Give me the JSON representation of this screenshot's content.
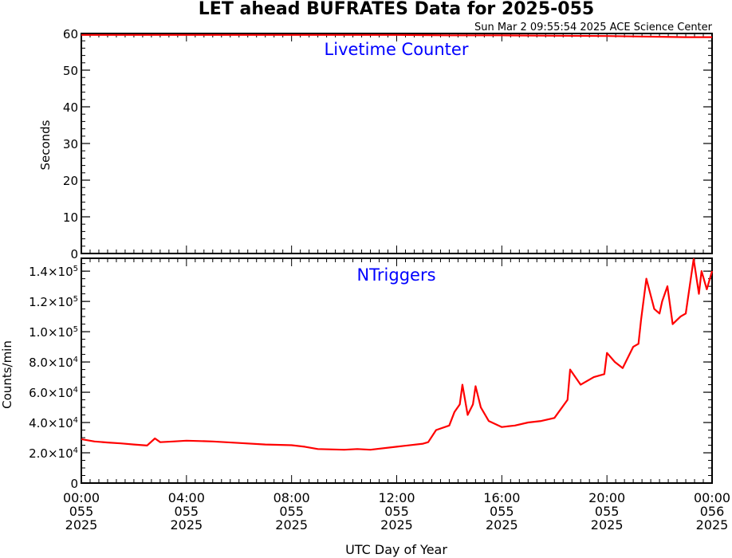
{
  "title": "LET ahead BUFRATES Data for 2025-055",
  "timestamp": "Sun Mar  2 09:55:54 2025 ACE Science Center",
  "xlabel": "UTC Day of Year",
  "x_ticks": [
    {
      "l1": "00:00",
      "l2": "055",
      "l3": "2025"
    },
    {
      "l1": "04:00",
      "l2": "055",
      "l3": "2025"
    },
    {
      "l1": "08:00",
      "l2": "055",
      "l3": "2025"
    },
    {
      "l1": "12:00",
      "l2": "055",
      "l3": "2025"
    },
    {
      "l1": "16:00",
      "l2": "055",
      "l3": "2025"
    },
    {
      "l1": "20:00",
      "l2": "055",
      "l3": "2025"
    },
    {
      "l1": "00:00",
      "l2": "056",
      "l3": "2025"
    }
  ],
  "colors": {
    "series": "#ff0000",
    "panel_label": "#0000ff",
    "axis": "#000000"
  },
  "chart_data": [
    {
      "type": "line",
      "panel_label": "Livetime Counter",
      "ylabel": "Seconds",
      "xlim_hours": [
        0,
        24
      ],
      "ylim": [
        0,
        60
      ],
      "yticks": [
        {
          "v": 0,
          "label": "0"
        },
        {
          "v": 10,
          "label": "10"
        },
        {
          "v": 20,
          "label": "20"
        },
        {
          "v": 30,
          "label": "30"
        },
        {
          "v": 40,
          "label": "40"
        },
        {
          "v": 50,
          "label": "50"
        },
        {
          "v": 60,
          "label": "60"
        }
      ],
      "series": [
        {
          "x": [
            0,
            2,
            4,
            6,
            8,
            10,
            12,
            14,
            16,
            18,
            20,
            21,
            22,
            23,
            24
          ],
          "y": [
            59.6,
            59.6,
            59.6,
            59.6,
            59.6,
            59.6,
            59.6,
            59.5,
            59.5,
            59.4,
            59.3,
            59.2,
            59.1,
            59.0,
            59.0
          ]
        }
      ]
    },
    {
      "type": "line",
      "panel_label": "NTriggers",
      "ylabel": "Counts/min",
      "xlim_hours": [
        0,
        24
      ],
      "ylim": [
        0,
        150000
      ],
      "yticks": [
        {
          "v": 0,
          "m": "0",
          "e": ""
        },
        {
          "v": 20000,
          "m": "2.0×10",
          "e": "4"
        },
        {
          "v": 40000,
          "m": "4.0×10",
          "e": "4"
        },
        {
          "v": 60000,
          "m": "6.0×10",
          "e": "4"
        },
        {
          "v": 80000,
          "m": "8.0×10",
          "e": "4"
        },
        {
          "v": 100000,
          "m": "1.0×10",
          "e": "5"
        },
        {
          "v": 120000,
          "m": "1.2×10",
          "e": "5"
        },
        {
          "v": 140000,
          "m": "1.4×10",
          "e": "5"
        }
      ],
      "series": [
        {
          "x": [
            0,
            0.5,
            1,
            1.5,
            2,
            2.5,
            2.8,
            3,
            3.5,
            4,
            5,
            6,
            7,
            8,
            8.5,
            9,
            10,
            10.5,
            11,
            12,
            13,
            13.2,
            13.5,
            14,
            14.2,
            14.4,
            14.5,
            14.7,
            14.9,
            15.0,
            15.2,
            15.5,
            16,
            16.5,
            17,
            17.5,
            18,
            18.5,
            18.6,
            19,
            19.5,
            19.9,
            20,
            20.3,
            20.6,
            21,
            21.2,
            21.3,
            21.5,
            21.8,
            22,
            22.1,
            22.3,
            22.5,
            22.8,
            23,
            23.3,
            23.5,
            23.6,
            23.8,
            24
          ],
          "y": [
            29000,
            27500,
            26800,
            26200,
            25500,
            24800,
            29500,
            27000,
            27500,
            28000,
            27500,
            26500,
            25500,
            25000,
            24000,
            22500,
            22000,
            22500,
            22000,
            24000,
            26000,
            27000,
            35000,
            38000,
            47000,
            52000,
            65000,
            45000,
            52000,
            64000,
            50000,
            41000,
            37000,
            38000,
            40000,
            41000,
            43000,
            55000,
            75000,
            65000,
            70000,
            72000,
            86000,
            80000,
            76000,
            90000,
            92000,
            108000,
            135000,
            115000,
            112000,
            120000,
            130000,
            105000,
            110000,
            112000,
            148000,
            125000,
            140000,
            128000,
            140000
          ]
        }
      ]
    }
  ]
}
